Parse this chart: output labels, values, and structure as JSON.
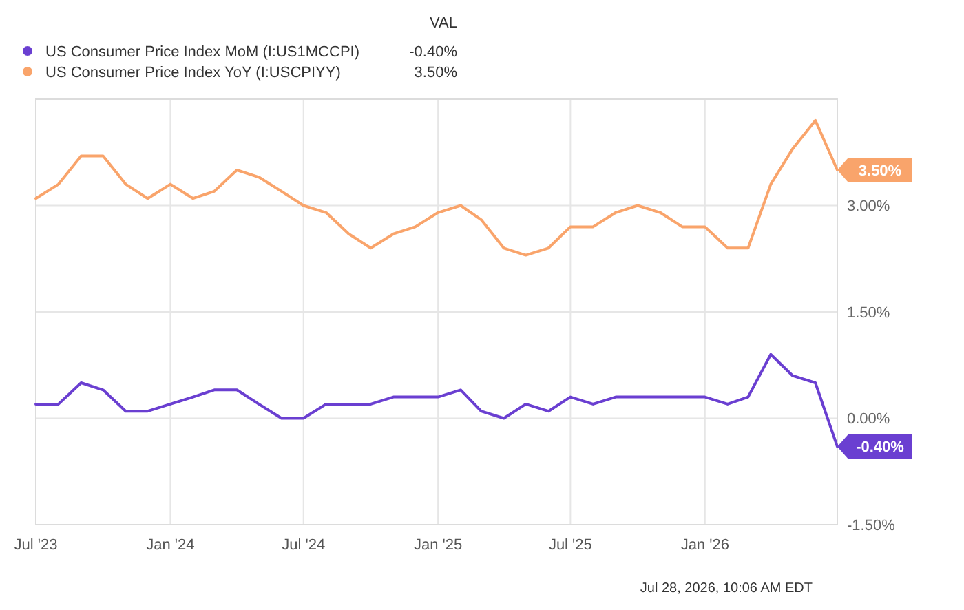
{
  "chart_data": {
    "type": "line",
    "legend_title": "VAL",
    "legend": "top left",
    "grid": true,
    "marker": "none",
    "line_style": "solid",
    "x": [
      "2023-07",
      "2023-08",
      "2023-09",
      "2023-10",
      "2023-11",
      "2023-12",
      "2024-01",
      "2024-02",
      "2024-03",
      "2024-04",
      "2024-05",
      "2024-06",
      "2024-07",
      "2024-08",
      "2024-09",
      "2024-10",
      "2024-11",
      "2024-12",
      "2025-01",
      "2025-02",
      "2025-03",
      "2025-04",
      "2025-05",
      "2025-06",
      "2025-07",
      "2025-08",
      "2025-09",
      "2025-10",
      "2025-11",
      "2025-12",
      "2026-01",
      "2026-02",
      "2026-03",
      "2026-04",
      "2026-05",
      "2026-06",
      "2026-07"
    ],
    "xlim": [
      "2023-07",
      "2026-07"
    ],
    "xticks": [
      {
        "value": "2023-07",
        "label": "Jul '23"
      },
      {
        "value": "2024-01",
        "label": "Jan '24"
      },
      {
        "value": "2024-07",
        "label": "Jul '24"
      },
      {
        "value": "2025-01",
        "label": "Jan '25"
      },
      {
        "value": "2025-07",
        "label": "Jul '25"
      },
      {
        "value": "2026-01",
        "label": "Jan '26"
      }
    ],
    "ylim": [
      -1.5,
      4.5
    ],
    "yticks": [
      {
        "value": -1.5,
        "label": "-1.50%"
      },
      {
        "value": 0,
        "label": "0.00%"
      },
      {
        "value": 1.5,
        "label": "1.50%"
      },
      {
        "value": 3,
        "label": "3.00%"
      }
    ],
    "series": [
      {
        "name": "US Consumer Price Index MoM (I:US1MCCPI)",
        "color": "#6a3fd1",
        "values": [
          0.2,
          0.2,
          0.5,
          0.4,
          0.1,
          0.1,
          0.2,
          0.3,
          0.4,
          0.4,
          0.2,
          0.0,
          0.0,
          0.2,
          0.2,
          0.2,
          0.3,
          0.3,
          0.3,
          0.4,
          0.1,
          0.0,
          0.2,
          0.1,
          0.3,
          0.2,
          0.3,
          0.3,
          0.3,
          0.3,
          0.3,
          0.2,
          0.3,
          0.9,
          0.6,
          0.5,
          -0.4
        ],
        "value_labels": [
          null,
          null,
          null,
          null,
          null,
          null,
          null,
          null,
          null,
          null,
          null,
          null,
          null,
          null,
          null,
          null,
          null,
          null,
          null,
          null,
          null,
          null,
          null,
          null,
          null,
          null,
          null,
          null,
          null,
          null,
          null,
          null,
          null,
          null,
          null,
          null,
          "-0.40%"
        ]
      },
      {
        "name": "US Consumer Price Index YoY (I:USCPIYY)",
        "color": "#f9a46b",
        "values": [
          3.1,
          3.3,
          3.7,
          3.7,
          3.3,
          3.1,
          3.3,
          3.1,
          3.2,
          3.5,
          3.4,
          3.2,
          3.0,
          2.9,
          2.6,
          2.4,
          2.6,
          2.7,
          2.9,
          3.0,
          2.8,
          2.4,
          2.3,
          2.4,
          2.7,
          2.7,
          2.9,
          3.0,
          2.9,
          2.7,
          2.7,
          2.4,
          2.4,
          3.3,
          3.8,
          4.2,
          3.5
        ],
        "value_labels": [
          null,
          null,
          null,
          null,
          null,
          null,
          null,
          null,
          null,
          null,
          null,
          null,
          null,
          null,
          null,
          null,
          null,
          null,
          null,
          null,
          null,
          null,
          null,
          null,
          null,
          null,
          null,
          null,
          null,
          null,
          null,
          null,
          null,
          null,
          null,
          null,
          "3.50%"
        ]
      }
    ],
    "annotations": [
      "Jul 28, 2026, 10:06 AM EDT"
    ]
  }
}
